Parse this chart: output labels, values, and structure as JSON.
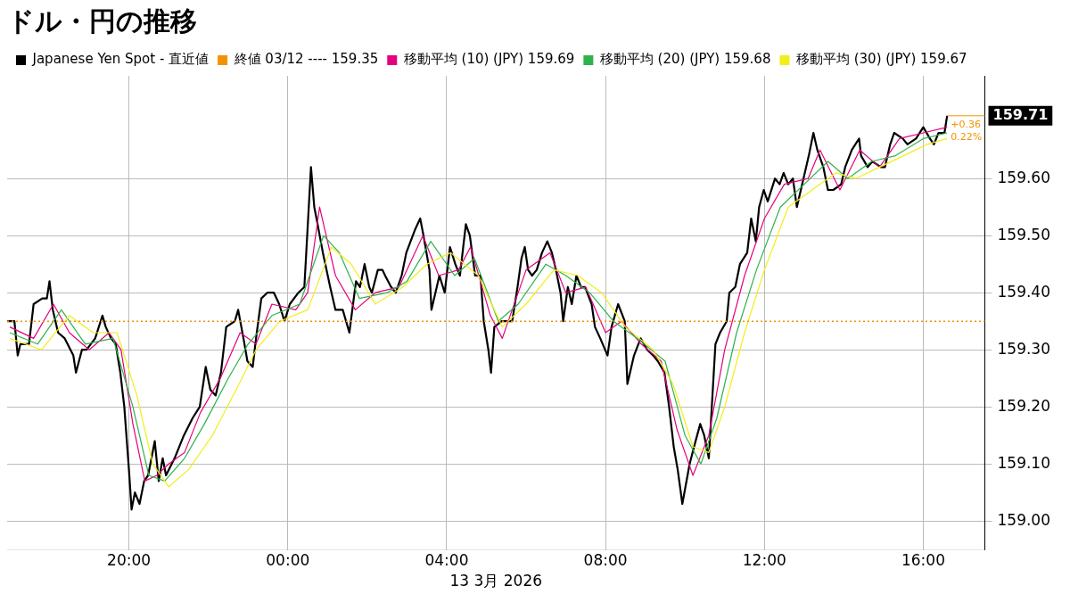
{
  "chart_data": {
    "type": "line",
    "title": "ドル・円の推移",
    "xlabel": "13 3月 2026",
    "xlim": [
      "2026-03-12T16:56",
      "2026-03-13T17:33"
    ],
    "xticks": [
      {
        "value": "2026-03-12T20:00",
        "label": "20:00"
      },
      {
        "value": "2026-03-13T00:00",
        "label": "00:00"
      },
      {
        "value": "2026-03-13T04:00",
        "label": "04:00"
      },
      {
        "value": "2026-03-13T08:00",
        "label": "08:00"
      },
      {
        "value": "2026-03-13T12:00",
        "label": "12:00"
      },
      {
        "value": "2026-03-13T16:00",
        "label": "16:00"
      }
    ],
    "ylim": [
      158.95,
      159.78
    ],
    "yticks": [
      {
        "value": 159,
        "label": "159.00"
      },
      {
        "value": 159.1,
        "label": "159.10"
      },
      {
        "value": 159.2,
        "label": "159.20"
      },
      {
        "value": 159.3,
        "label": "159.30"
      },
      {
        "value": 159.4,
        "label": "159.40"
      },
      {
        "value": 159.5,
        "label": "159.50"
      },
      {
        "value": 159.6,
        "label": "159.60"
      }
    ],
    "grid": true,
    "legend": "top left",
    "marker": "none",
    "line_style": "solid",
    "series": [
      {
        "name": "Japanese Yen Spot - 直近値",
        "color": "#000000",
        "x": [
          "2026-03-12T16:56",
          "2026-03-12T17:07",
          "2026-03-12T17:12",
          "2026-03-12T17:16",
          "2026-03-12T17:29",
          "2026-03-12T17:36",
          "2026-03-12T17:49",
          "2026-03-12T17:56",
          "2026-03-12T18:00",
          "2026-03-12T18:05",
          "2026-03-12T18:13",
          "2026-03-12T18:23",
          "2026-03-12T18:36",
          "2026-03-12T18:40",
          "2026-03-12T18:49",
          "2026-03-12T18:56",
          "2026-03-12T19:09",
          "2026-03-12T19:20",
          "2026-03-12T19:25",
          "2026-03-12T19:33",
          "2026-03-12T19:40",
          "2026-03-12T19:47",
          "2026-03-12T19:53",
          "2026-03-12T20:00",
          "2026-03-12T20:04",
          "2026-03-12T20:09",
          "2026-03-12T20:16",
          "2026-03-12T20:23",
          "2026-03-12T20:29",
          "2026-03-12T20:39",
          "2026-03-12T20:45",
          "2026-03-12T20:51",
          "2026-03-12T20:56",
          "2026-03-12T21:09",
          "2026-03-12T21:23",
          "2026-03-12T21:36",
          "2026-03-12T21:47",
          "2026-03-12T21:56",
          "2026-03-12T22:03",
          "2026-03-12T22:11",
          "2026-03-12T22:19",
          "2026-03-12T22:27",
          "2026-03-12T22:40",
          "2026-03-12T22:45",
          "2026-03-12T22:53",
          "2026-03-12T22:59",
          "2026-03-12T23:07",
          "2026-03-12T23:12",
          "2026-03-12T23:20",
          "2026-03-12T23:29",
          "2026-03-12T23:39",
          "2026-03-12T23:47",
          "2026-03-12T23:55",
          "2026-03-13T00:03",
          "2026-03-13T00:16",
          "2026-03-13T00:25",
          "2026-03-13T00:35",
          "2026-03-13T00:40",
          "2026-03-13T00:45",
          "2026-03-13T00:53",
          "2026-03-13T01:04",
          "2026-03-13T01:12",
          "2026-03-13T01:23",
          "2026-03-13T01:33",
          "2026-03-13T01:43",
          "2026-03-13T01:49",
          "2026-03-13T01:56",
          "2026-03-13T02:03",
          "2026-03-13T02:07",
          "2026-03-13T02:16",
          "2026-03-13T02:23",
          "2026-03-13T02:27",
          "2026-03-13T02:36",
          "2026-03-13T02:43",
          "2026-03-13T02:52",
          "2026-03-13T02:59",
          "2026-03-13T03:12",
          "2026-03-13T03:20",
          "2026-03-13T03:25",
          "2026-03-13T03:34",
          "2026-03-13T03:37",
          "2026-03-13T03:49",
          "2026-03-13T03:57",
          "2026-03-13T04:05",
          "2026-03-13T04:13",
          "2026-03-13T04:20",
          "2026-03-13T04:29",
          "2026-03-13T04:35",
          "2026-03-13T04:43",
          "2026-03-13T04:51",
          "2026-03-13T04:56",
          "2026-03-13T05:03",
          "2026-03-13T05:07",
          "2026-03-13T05:12",
          "2026-03-13T05:23",
          "2026-03-13T05:31",
          "2026-03-13T05:39",
          "2026-03-13T05:47",
          "2026-03-13T05:53",
          "2026-03-13T05:58",
          "2026-03-13T06:03",
          "2026-03-13T06:09",
          "2026-03-13T06:16",
          "2026-03-13T06:24",
          "2026-03-13T06:32",
          "2026-03-13T06:39",
          "2026-03-13T06:45",
          "2026-03-13T06:52",
          "2026-03-13T06:56",
          "2026-03-13T07:03",
          "2026-03-13T07:09",
          "2026-03-13T07:16",
          "2026-03-13T07:23",
          "2026-03-13T07:29",
          "2026-03-13T07:39",
          "2026-03-13T07:44",
          "2026-03-13T07:52",
          "2026-03-13T08:03",
          "2026-03-13T08:09",
          "2026-03-13T08:19",
          "2026-03-13T08:29",
          "2026-03-13T08:33",
          "2026-03-13T08:43",
          "2026-03-13T08:53",
          "2026-03-13T09:03",
          "2026-03-13T09:12",
          "2026-03-13T09:19",
          "2026-03-13T09:29",
          "2026-03-13T09:36",
          "2026-03-13T09:43",
          "2026-03-13T09:49",
          "2026-03-13T09:56",
          "2026-03-13T10:07",
          "2026-03-13T10:16",
          "2026-03-13T10:23",
          "2026-03-13T10:29",
          "2026-03-13T10:36",
          "2026-03-13T10:40",
          "2026-03-13T10:46",
          "2026-03-13T10:53",
          "2026-03-13T11:03",
          "2026-03-13T11:07",
          "2026-03-13T11:16",
          "2026-03-13T11:23",
          "2026-03-13T11:34",
          "2026-03-13T11:40",
          "2026-03-13T11:47",
          "2026-03-13T11:52",
          "2026-03-13T11:59",
          "2026-03-13T12:05",
          "2026-03-13T12:16",
          "2026-03-13T12:23",
          "2026-03-13T12:29",
          "2026-03-13T12:36",
          "2026-03-13T12:43",
          "2026-03-13T12:49",
          "2026-03-13T12:59",
          "2026-03-13T13:07",
          "2026-03-13T13:14",
          "2026-03-13T13:20",
          "2026-03-13T13:29",
          "2026-03-13T13:36",
          "2026-03-13T13:44",
          "2026-03-13T13:56",
          "2026-03-13T14:02",
          "2026-03-13T14:12",
          "2026-03-13T14:23",
          "2026-03-13T14:26",
          "2026-03-13T14:36",
          "2026-03-13T14:43",
          "2026-03-13T14:56",
          "2026-03-13T15:02",
          "2026-03-13T15:10",
          "2026-03-13T15:16",
          "2026-03-13T15:29",
          "2026-03-13T15:36",
          "2026-03-13T15:49",
          "2026-03-13T16:00",
          "2026-03-13T16:10",
          "2026-03-13T16:16",
          "2026-03-13T16:23",
          "2026-03-13T16:32",
          "2026-03-13T16:36"
        ],
        "values": [
          159.35,
          159.35,
          159.29,
          159.31,
          159.31,
          159.38,
          159.39,
          159.39,
          159.42,
          159.37,
          159.33,
          159.32,
          159.29,
          159.26,
          159.3,
          159.3,
          159.32,
          159.36,
          159.34,
          159.32,
          159.31,
          159.26,
          159.2,
          159.09,
          159.02,
          159.05,
          159.03,
          159.07,
          159.08,
          159.14,
          159.07,
          159.11,
          159.08,
          159.11,
          159.15,
          159.18,
          159.2,
          159.27,
          159.23,
          159.22,
          159.26,
          159.34,
          159.35,
          159.37,
          159.32,
          159.28,
          159.27,
          159.32,
          159.39,
          159.4,
          159.4,
          159.38,
          159.35,
          159.38,
          159.4,
          159.41,
          159.62,
          159.55,
          159.52,
          159.47,
          159.41,
          159.37,
          159.37,
          159.33,
          159.42,
          159.41,
          159.45,
          159.41,
          159.4,
          159.44,
          159.44,
          159.43,
          159.41,
          159.4,
          159.43,
          159.47,
          159.51,
          159.53,
          159.5,
          159.44,
          159.37,
          159.43,
          159.4,
          159.48,
          159.45,
          159.43,
          159.52,
          159.5,
          159.43,
          159.43,
          159.35,
          159.3,
          159.26,
          159.34,
          159.35,
          159.35,
          159.35,
          159.41,
          159.46,
          159.48,
          159.44,
          159.43,
          159.44,
          159.47,
          159.49,
          159.47,
          159.44,
          159.4,
          159.35,
          159.41,
          159.38,
          159.43,
          159.41,
          159.41,
          159.38,
          159.34,
          159.32,
          159.29,
          159.34,
          159.38,
          159.35,
          159.24,
          159.29,
          159.32,
          159.3,
          159.29,
          159.28,
          159.26,
          159.2,
          159.13,
          159.09,
          159.03,
          159.1,
          159.14,
          159.17,
          159.15,
          159.11,
          159.19,
          159.31,
          159.33,
          159.35,
          159.4,
          159.41,
          159.45,
          159.47,
          159.53,
          159.49,
          159.55,
          159.58,
          159.56,
          159.6,
          159.59,
          159.61,
          159.59,
          159.6,
          159.55,
          159.6,
          159.64,
          159.68,
          159.65,
          159.62,
          159.58,
          159.58,
          159.59,
          159.62,
          159.65,
          159.67,
          159.64,
          159.62,
          159.63,
          159.62,
          159.62,
          159.66,
          159.68,
          159.67,
          159.66,
          159.67,
          159.69,
          159.67,
          159.66,
          159.68,
          159.68,
          159.71
        ]
      },
      {
        "name": "移動平均 (10) (JPY) 159.69",
        "color": "#e5007d",
        "x": [
          "2026-03-12T17:00",
          "2026-03-12T17:36",
          "2026-03-12T18:06",
          "2026-03-12T18:30",
          "2026-03-12T19:00",
          "2026-03-12T19:30",
          "2026-03-12T19:48",
          "2026-03-12T20:06",
          "2026-03-12T20:24",
          "2026-03-12T20:42",
          "2026-03-12T21:00",
          "2026-03-12T21:24",
          "2026-03-12T21:48",
          "2026-03-12T22:18",
          "2026-03-12T22:48",
          "2026-03-12T23:12",
          "2026-03-12T23:36",
          "2026-03-13T00:12",
          "2026-03-13T00:30",
          "2026-03-13T00:48",
          "2026-03-13T01:12",
          "2026-03-13T01:42",
          "2026-03-13T02:12",
          "2026-03-13T02:48",
          "2026-03-13T03:24",
          "2026-03-13T03:48",
          "2026-03-13T04:18",
          "2026-03-13T04:36",
          "2026-03-13T05:06",
          "2026-03-13T05:24",
          "2026-03-13T06:00",
          "2026-03-13T06:36",
          "2026-03-13T07:00",
          "2026-03-13T07:30",
          "2026-03-13T08:00",
          "2026-03-13T08:24",
          "2026-03-13T08:54",
          "2026-03-13T09:24",
          "2026-03-13T09:48",
          "2026-03-13T10:12",
          "2026-03-13T10:36",
          "2026-03-13T11:00",
          "2026-03-13T11:30",
          "2026-03-13T12:00",
          "2026-03-13T12:30",
          "2026-03-13T13:06",
          "2026-03-13T13:24",
          "2026-03-13T13:54",
          "2026-03-13T14:24",
          "2026-03-13T14:54",
          "2026-03-13T15:24",
          "2026-03-13T16:00",
          "2026-03-13T16:36"
        ],
        "values": [
          159.34,
          159.32,
          159.38,
          159.33,
          159.3,
          159.33,
          159.3,
          159.17,
          159.07,
          159.08,
          159.1,
          159.12,
          159.19,
          159.25,
          159.33,
          159.31,
          159.38,
          159.37,
          159.4,
          159.55,
          159.43,
          159.37,
          159.4,
          159.41,
          159.5,
          159.43,
          159.44,
          159.48,
          159.36,
          159.32,
          159.44,
          159.47,
          159.4,
          159.41,
          159.33,
          159.35,
          159.31,
          159.28,
          159.16,
          159.08,
          159.15,
          159.3,
          159.43,
          159.53,
          159.59,
          159.6,
          159.65,
          159.58,
          159.65,
          159.62,
          159.67,
          159.68,
          159.69
        ]
      },
      {
        "name": "移動平均 (20) (JPY) 159.68",
        "color": "#2db34a",
        "x": [
          "2026-03-12T17:00",
          "2026-03-12T17:42",
          "2026-03-12T18:18",
          "2026-03-12T18:54",
          "2026-03-12T19:36",
          "2026-03-12T20:06",
          "2026-03-12T20:30",
          "2026-03-12T20:54",
          "2026-03-12T21:24",
          "2026-03-12T21:54",
          "2026-03-12T22:30",
          "2026-03-12T23:00",
          "2026-03-12T23:36",
          "2026-03-13T00:18",
          "2026-03-13T00:54",
          "2026-03-13T01:18",
          "2026-03-13T01:48",
          "2026-03-13T02:30",
          "2026-03-13T03:00",
          "2026-03-13T03:36",
          "2026-03-13T04:12",
          "2026-03-13T04:42",
          "2026-03-13T05:18",
          "2026-03-13T05:48",
          "2026-03-13T06:30",
          "2026-03-13T07:00",
          "2026-03-13T07:36",
          "2026-03-13T08:12",
          "2026-03-13T08:48",
          "2026-03-13T09:30",
          "2026-03-13T10:00",
          "2026-03-13T10:24",
          "2026-03-13T10:48",
          "2026-03-13T11:18",
          "2026-03-13T11:48",
          "2026-03-13T12:24",
          "2026-03-13T13:00",
          "2026-03-13T13:36",
          "2026-03-13T14:06",
          "2026-03-13T14:42",
          "2026-03-13T15:18",
          "2026-03-13T16:00",
          "2026-03-13T16:36"
        ],
        "values": [
          159.33,
          159.31,
          159.37,
          159.31,
          159.32,
          159.2,
          159.08,
          159.07,
          159.11,
          159.17,
          159.25,
          159.31,
          159.36,
          159.38,
          159.5,
          159.47,
          159.39,
          159.4,
          159.42,
          159.49,
          159.43,
          159.46,
          159.35,
          159.38,
          159.45,
          159.43,
          159.4,
          159.35,
          159.32,
          159.28,
          159.15,
          159.1,
          159.18,
          159.33,
          159.44,
          159.55,
          159.59,
          159.63,
          159.6,
          159.63,
          159.64,
          159.67,
          159.68
        ]
      },
      {
        "name": "移動平均 (30) (JPY) 159.67",
        "color": "#f2ee1a",
        "x": [
          "2026-03-12T17:00",
          "2026-03-12T17:48",
          "2026-03-12T18:30",
          "2026-03-12T19:06",
          "2026-03-12T19:42",
          "2026-03-12T20:12",
          "2026-03-12T20:36",
          "2026-03-12T21:00",
          "2026-03-12T21:30",
          "2026-03-12T22:06",
          "2026-03-12T22:42",
          "2026-03-12T23:12",
          "2026-03-12T23:48",
          "2026-03-13T00:30",
          "2026-03-13T01:06",
          "2026-03-13T01:36",
          "2026-03-13T02:12",
          "2026-03-13T02:54",
          "2026-03-13T03:30",
          "2026-03-13T04:06",
          "2026-03-13T04:48",
          "2026-03-13T05:24",
          "2026-03-13T06:00",
          "2026-03-13T06:42",
          "2026-03-13T07:18",
          "2026-03-13T07:54",
          "2026-03-13T08:30",
          "2026-03-13T09:12",
          "2026-03-13T09:42",
          "2026-03-13T10:12",
          "2026-03-13T10:36",
          "2026-03-13T11:00",
          "2026-03-13T11:30",
          "2026-03-13T12:00",
          "2026-03-13T12:36",
          "2026-03-13T13:12",
          "2026-03-13T13:48",
          "2026-03-13T14:18",
          "2026-03-13T14:54",
          "2026-03-13T15:30",
          "2026-03-13T16:06",
          "2026-03-13T16:36"
        ],
        "values": [
          159.32,
          159.3,
          159.36,
          159.33,
          159.33,
          159.22,
          159.1,
          159.06,
          159.09,
          159.15,
          159.23,
          159.3,
          159.35,
          159.37,
          159.48,
          159.45,
          159.38,
          159.41,
          159.45,
          159.47,
          159.43,
          159.34,
          159.38,
          159.44,
          159.43,
          159.4,
          159.34,
          159.3,
          159.24,
          159.13,
          159.12,
          159.2,
          159.33,
          159.44,
          159.55,
          159.58,
          159.61,
          159.6,
          159.62,
          159.64,
          159.66,
          159.67
        ]
      }
    ],
    "ref_lines": [
      {
        "axis": "y",
        "value": 159.35,
        "label": "終値 03/12 ---- 159.35",
        "color": "#f39200",
        "line_style": "dotted"
      }
    ],
    "annotations": [
      "+0.36",
      "0.22%",
      {
        "text": "159.71",
        "x": "2026-03-13T16:36",
        "y": 159.71
      }
    ]
  }
}
